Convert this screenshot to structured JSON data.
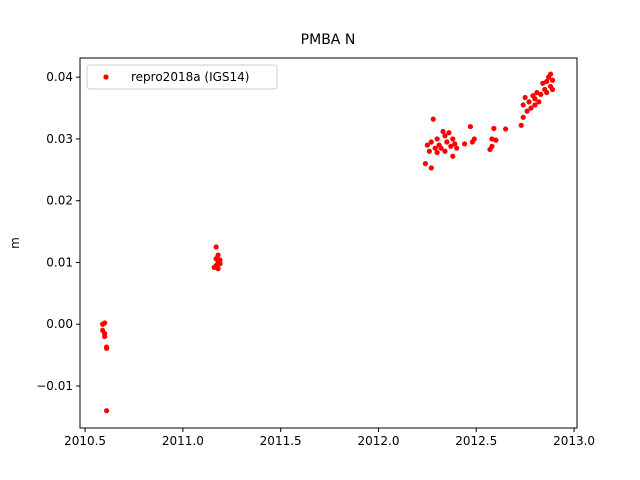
{
  "chart_data": {
    "type": "scatter",
    "title": "PMBA N",
    "y_label": "m",
    "xlim": [
      2010.474,
      2013.015
    ],
    "ylim": [
      -0.0168,
      0.0431
    ],
    "xticks": [
      2010.5,
      {
        "value": 2011,
        "label": "2011.0"
      },
      2011.5,
      {
        "value": 2012,
        "label": "2012.0"
      },
      2012.5,
      {
        "value": 2013,
        "label": "2013.0"
      }
    ],
    "yticks": [
      {
        "value": -0.01,
        "label": "−0.01"
      },
      {
        "value": 0,
        "label": "0.00"
      },
      0.01,
      0.02,
      0.03,
      0.04
    ],
    "grid": false,
    "legend": "upper left",
    "series": [
      {
        "name": "repro2018a (IGS14)",
        "color": "#ff0000",
        "x": [
          2010.59,
          2010.6,
          2010.59,
          2010.6,
          2010.6,
          2010.61,
          2010.61,
          2010.61,
          2011.17,
          2011.18,
          2011.17,
          2011.19,
          2011.18,
          2011.17,
          2011.18,
          2011.19,
          2011.16,
          2012.24,
          2012.25,
          2012.26,
          2012.27,
          2012.27,
          2012.28,
          2012.29,
          2012.3,
          2012.3,
          2012.31,
          2012.32,
          2012.33,
          2012.34,
          2012.34,
          2012.35,
          2012.36,
          2012.37,
          2012.38,
          2012.38,
          2012.39,
          2012.4,
          2012.44,
          2012.47,
          2012.48,
          2012.49,
          2012.57,
          2012.58,
          2012.58,
          2012.59,
          2012.6,
          2012.65,
          2012.73,
          2012.74,
          2012.74,
          2012.75,
          2012.76,
          2012.77,
          2012.78,
          2012.79,
          2012.8,
          2012.8,
          2012.81,
          2012.82,
          2012.83,
          2012.84,
          2012.85,
          2012.86,
          2012.86,
          2012.87,
          2012.88,
          2012.88,
          2012.89,
          2012.89
        ],
        "values": [
          0.0,
          0.0002,
          -0.001,
          -0.0015,
          -0.002,
          -0.0037,
          -0.0039,
          -0.014,
          0.0125,
          0.0112,
          0.0106,
          0.0104,
          0.01,
          0.0095,
          0.009,
          0.0098,
          0.0092,
          0.026,
          0.029,
          0.028,
          0.0253,
          0.0295,
          0.0332,
          0.0285,
          0.0278,
          0.03,
          0.029,
          0.0285,
          0.0312,
          0.0305,
          0.028,
          0.0295,
          0.031,
          0.0288,
          0.03,
          0.0272,
          0.0292,
          0.0285,
          0.0292,
          0.032,
          0.0295,
          0.03,
          0.0283,
          0.0288,
          0.03,
          0.0317,
          0.0298,
          0.0316,
          0.0322,
          0.0335,
          0.0355,
          0.0367,
          0.0345,
          0.036,
          0.035,
          0.037,
          0.0365,
          0.0355,
          0.0375,
          0.036,
          0.0372,
          0.039,
          0.038,
          0.0393,
          0.0375,
          0.04,
          0.0385,
          0.0405,
          0.0395,
          0.038
        ]
      }
    ]
  }
}
